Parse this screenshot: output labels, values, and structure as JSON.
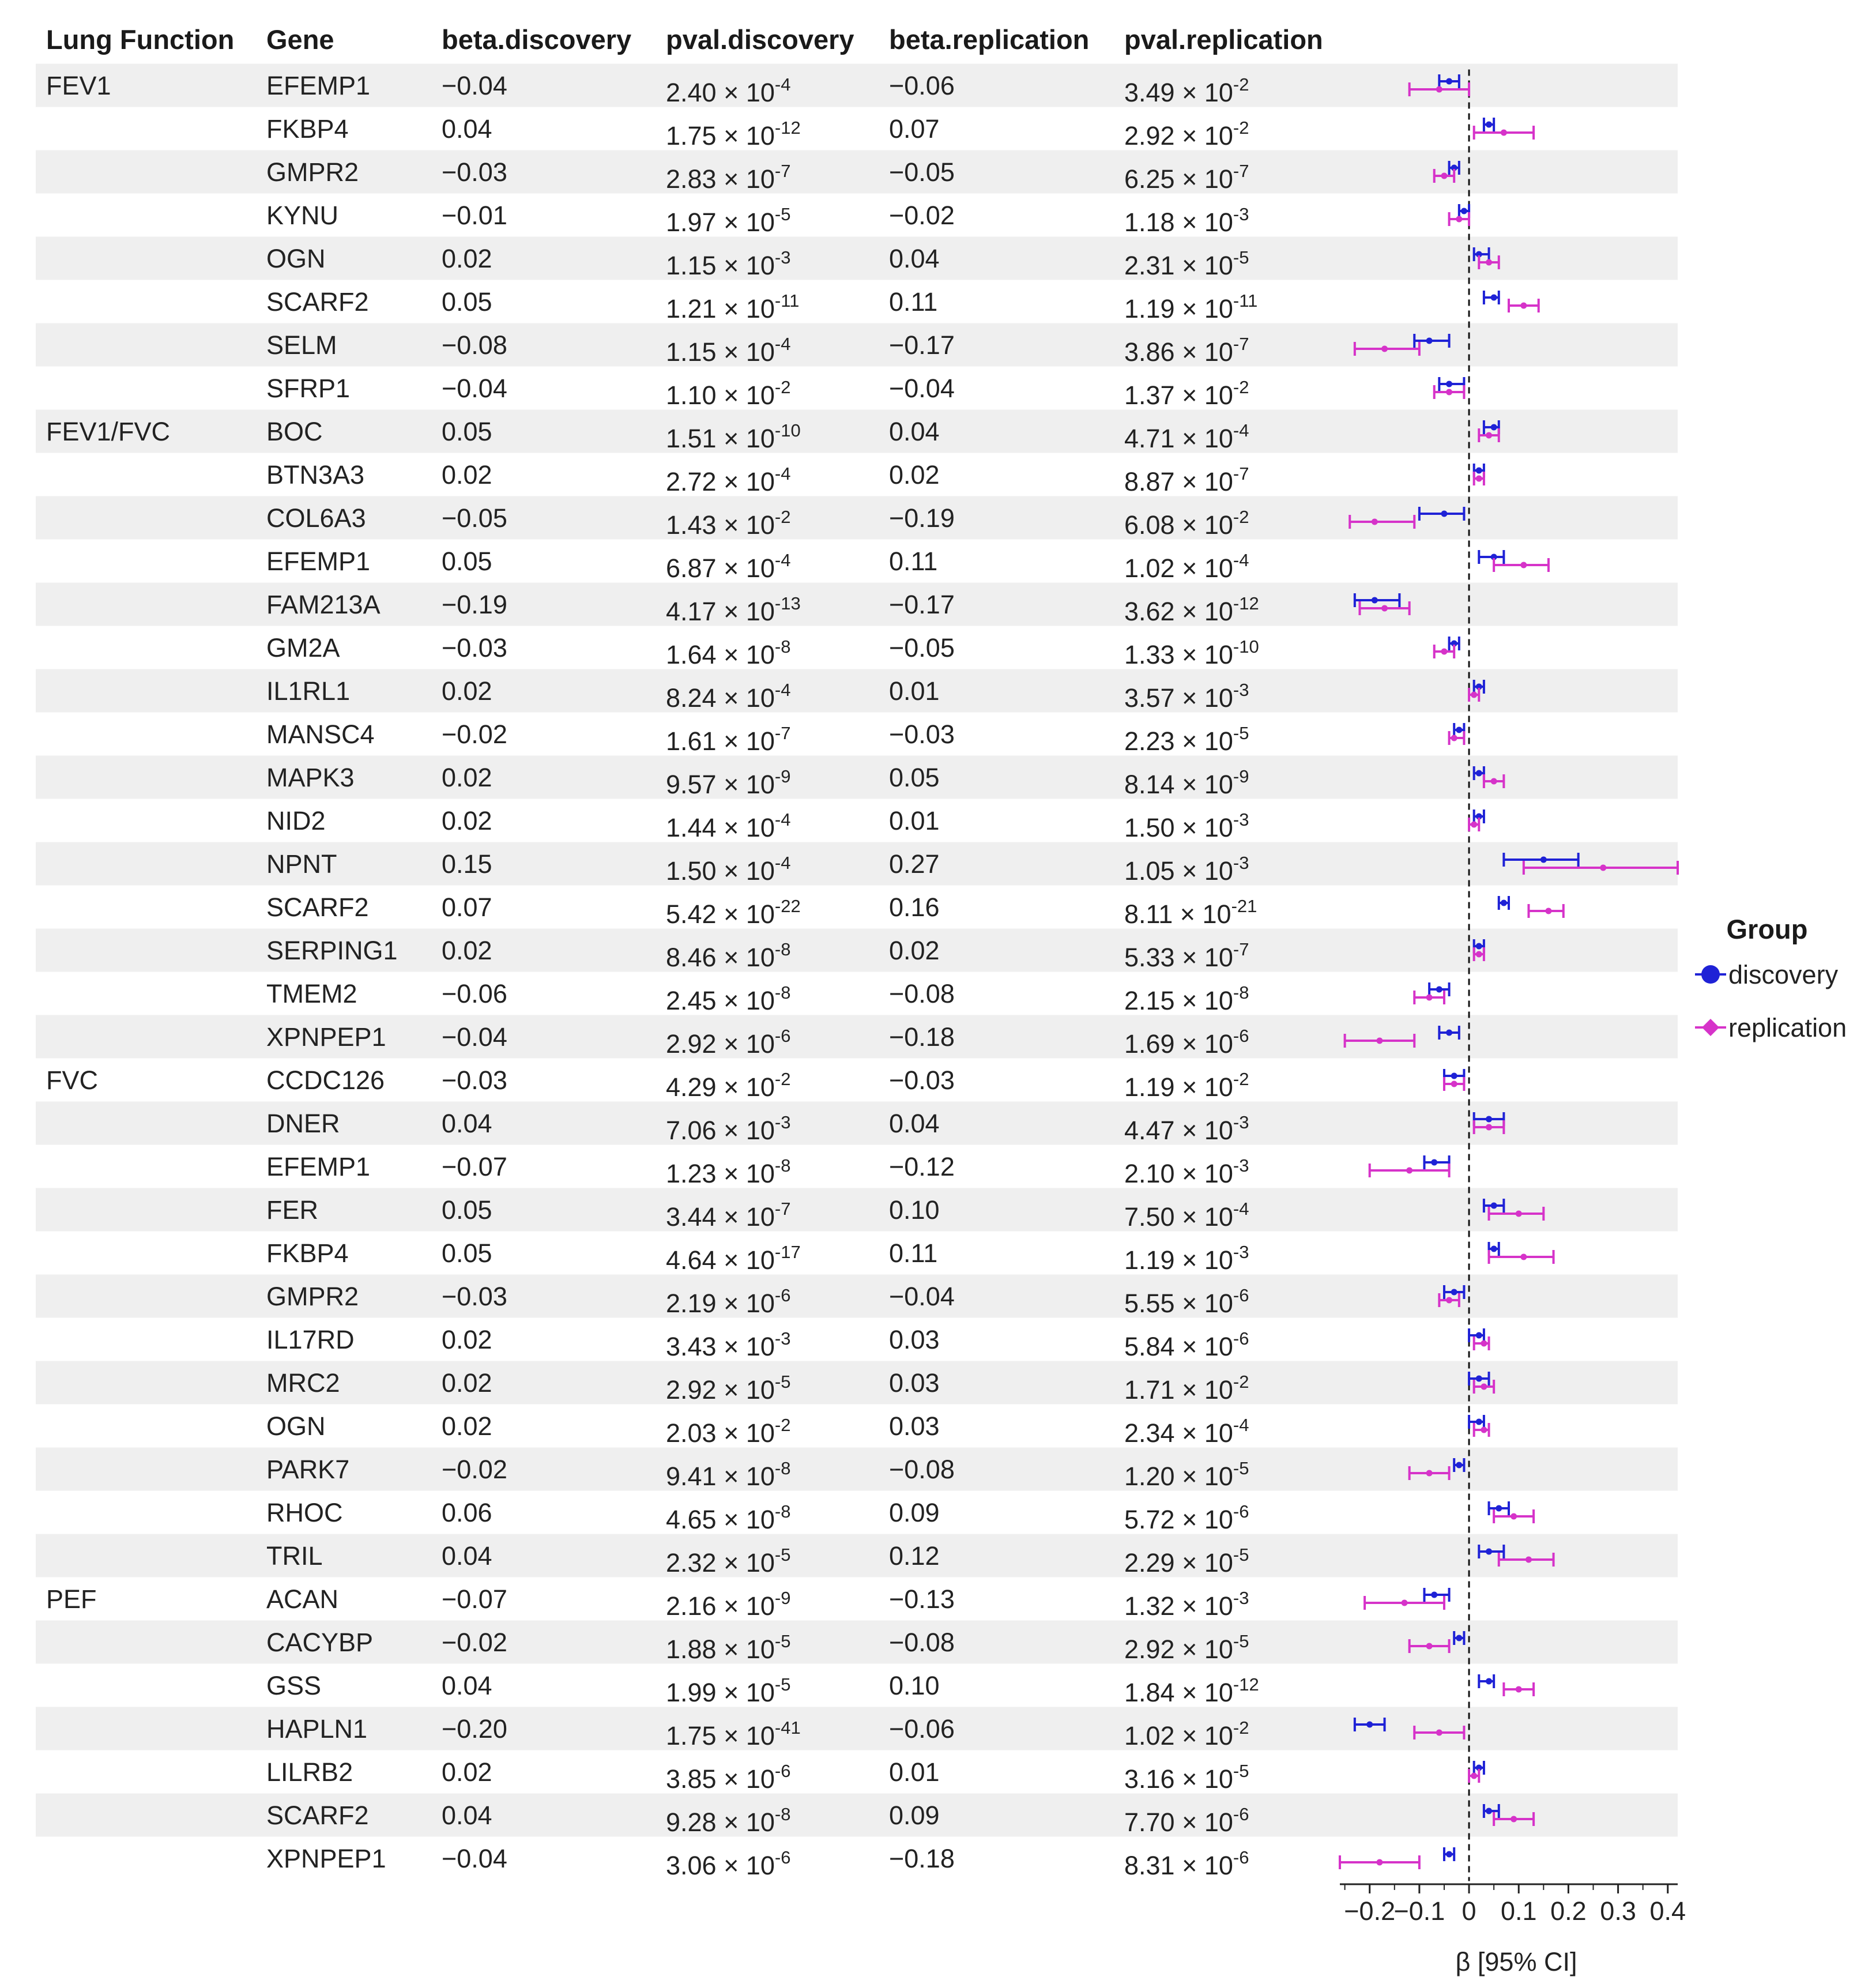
{
  "chart_data": {
    "type": "forest",
    "columns": [
      "Lung Function",
      "Gene",
      "beta.discovery",
      "pval.discovery",
      "beta.replication",
      "pval.replication"
    ],
    "rows": [
      {
        "group": "FEV1",
        "gene": "EFEMP1",
        "beta_d_label": "−0.04",
        "p_d_mant": "2.40",
        "p_d_exp": "-4",
        "beta_r_label": "−0.06",
        "p_r_mant": "3.49",
        "p_r_exp": "-2",
        "d": {
          "est": -0.04,
          "lo": -0.06,
          "hi": -0.02
        },
        "r": {
          "est": -0.06,
          "lo": -0.12,
          "hi": 0.0
        }
      },
      {
        "group": "",
        "gene": "FKBP4",
        "beta_d_label": "0.04",
        "p_d_mant": "1.75",
        "p_d_exp": "-12",
        "beta_r_label": "0.07",
        "p_r_mant": "2.92",
        "p_r_exp": "-2",
        "d": {
          "est": 0.04,
          "lo": 0.03,
          "hi": 0.05
        },
        "r": {
          "est": 0.07,
          "lo": 0.01,
          "hi": 0.13
        }
      },
      {
        "group": "",
        "gene": "GMPR2",
        "beta_d_label": "−0.03",
        "p_d_mant": "2.83",
        "p_d_exp": "-7",
        "beta_r_label": "−0.05",
        "p_r_mant": "6.25",
        "p_r_exp": "-7",
        "d": {
          "est": -0.03,
          "lo": -0.04,
          "hi": -0.02
        },
        "r": {
          "est": -0.05,
          "lo": -0.07,
          "hi": -0.03
        }
      },
      {
        "group": "",
        "gene": "KYNU",
        "beta_d_label": "−0.01",
        "p_d_mant": "1.97",
        "p_d_exp": "-5",
        "beta_r_label": "−0.02",
        "p_r_mant": "1.18",
        "p_r_exp": "-3",
        "d": {
          "est": -0.01,
          "lo": -0.02,
          "hi": 0.0
        },
        "r": {
          "est": -0.02,
          "lo": -0.04,
          "hi": 0.0
        }
      },
      {
        "group": "",
        "gene": "OGN",
        "beta_d_label": "0.02",
        "p_d_mant": "1.15",
        "p_d_exp": "-3",
        "beta_r_label": "0.04",
        "p_r_mant": "2.31",
        "p_r_exp": "-5",
        "d": {
          "est": 0.02,
          "lo": 0.01,
          "hi": 0.04
        },
        "r": {
          "est": 0.04,
          "lo": 0.02,
          "hi": 0.06
        }
      },
      {
        "group": "",
        "gene": "SCARF2",
        "beta_d_label": "0.05",
        "p_d_mant": "1.21",
        "p_d_exp": "-11",
        "beta_r_label": "0.11",
        "p_r_mant": "1.19",
        "p_r_exp": "-11",
        "d": {
          "est": 0.05,
          "lo": 0.03,
          "hi": 0.06
        },
        "r": {
          "est": 0.11,
          "lo": 0.08,
          "hi": 0.14
        }
      },
      {
        "group": "",
        "gene": "SELM",
        "beta_d_label": "−0.08",
        "p_d_mant": "1.15",
        "p_d_exp": "-4",
        "beta_r_label": "−0.17",
        "p_r_mant": "3.86",
        "p_r_exp": "-7",
        "d": {
          "est": -0.08,
          "lo": -0.11,
          "hi": -0.04
        },
        "r": {
          "est": -0.17,
          "lo": -0.23,
          "hi": -0.1
        }
      },
      {
        "group": "",
        "gene": "SFRP1",
        "beta_d_label": "−0.04",
        "p_d_mant": "1.10",
        "p_d_exp": "-2",
        "beta_r_label": "−0.04",
        "p_r_mant": "1.37",
        "p_r_exp": "-2",
        "d": {
          "est": -0.04,
          "lo": -0.06,
          "hi": -0.01
        },
        "r": {
          "est": -0.04,
          "lo": -0.07,
          "hi": -0.01
        }
      },
      {
        "group": "FEV1/FVC",
        "gene": "BOC",
        "beta_d_label": "0.05",
        "p_d_mant": "1.51",
        "p_d_exp": "-10",
        "beta_r_label": "0.04",
        "p_r_mant": "4.71",
        "p_r_exp": "-4",
        "d": {
          "est": 0.05,
          "lo": 0.03,
          "hi": 0.06
        },
        "r": {
          "est": 0.04,
          "lo": 0.02,
          "hi": 0.06
        }
      },
      {
        "group": "",
        "gene": "BTN3A3",
        "beta_d_label": "0.02",
        "p_d_mant": "2.72",
        "p_d_exp": "-4",
        "beta_r_label": "0.02",
        "p_r_mant": "8.87",
        "p_r_exp": "-7",
        "d": {
          "est": 0.02,
          "lo": 0.01,
          "hi": 0.03
        },
        "r": {
          "est": 0.02,
          "lo": 0.01,
          "hi": 0.03
        }
      },
      {
        "group": "",
        "gene": "COL6A3",
        "beta_d_label": "−0.05",
        "p_d_mant": "1.43",
        "p_d_exp": "-2",
        "beta_r_label": "−0.19",
        "p_r_mant": "6.08",
        "p_r_exp": "-2",
        "d": {
          "est": -0.05,
          "lo": -0.1,
          "hi": -0.01
        },
        "r": {
          "est": -0.19,
          "lo": -0.24,
          "hi": -0.11
        }
      },
      {
        "group": "",
        "gene": "EFEMP1",
        "beta_d_label": "0.05",
        "p_d_mant": "6.87",
        "p_d_exp": "-4",
        "beta_r_label": "0.11",
        "p_r_mant": "1.02",
        "p_r_exp": "-4",
        "d": {
          "est": 0.05,
          "lo": 0.02,
          "hi": 0.07
        },
        "r": {
          "est": 0.11,
          "lo": 0.05,
          "hi": 0.16
        }
      },
      {
        "group": "",
        "gene": "FAM213A",
        "beta_d_label": "−0.19",
        "p_d_mant": "4.17",
        "p_d_exp": "-13",
        "beta_r_label": "−0.17",
        "p_r_mant": "3.62",
        "p_r_exp": "-12",
        "d": {
          "est": -0.19,
          "lo": -0.23,
          "hi": -0.14
        },
        "r": {
          "est": -0.17,
          "lo": -0.22,
          "hi": -0.12
        }
      },
      {
        "group": "",
        "gene": "GM2A",
        "beta_d_label": "−0.03",
        "p_d_mant": "1.64",
        "p_d_exp": "-8",
        "beta_r_label": "−0.05",
        "p_r_mant": "1.33",
        "p_r_exp": "-10",
        "d": {
          "est": -0.03,
          "lo": -0.04,
          "hi": -0.02
        },
        "r": {
          "est": -0.05,
          "lo": -0.07,
          "hi": -0.03
        }
      },
      {
        "group": "",
        "gene": "IL1RL1",
        "beta_d_label": "0.02",
        "p_d_mant": "8.24",
        "p_d_exp": "-4",
        "beta_r_label": "0.01",
        "p_r_mant": "3.57",
        "p_r_exp": "-3",
        "d": {
          "est": 0.02,
          "lo": 0.01,
          "hi": 0.03
        },
        "r": {
          "est": 0.01,
          "lo": 0.0,
          "hi": 0.02
        }
      },
      {
        "group": "",
        "gene": "MANSC4",
        "beta_d_label": "−0.02",
        "p_d_mant": "1.61",
        "p_d_exp": "-7",
        "beta_r_label": "−0.03",
        "p_r_mant": "2.23",
        "p_r_exp": "-5",
        "d": {
          "est": -0.02,
          "lo": -0.03,
          "hi": -0.01
        },
        "r": {
          "est": -0.03,
          "lo": -0.04,
          "hi": -0.01
        }
      },
      {
        "group": "",
        "gene": "MAPK3",
        "beta_d_label": "0.02",
        "p_d_mant": "9.57",
        "p_d_exp": "-9",
        "beta_r_label": "0.05",
        "p_r_mant": "8.14",
        "p_r_exp": "-9",
        "d": {
          "est": 0.02,
          "lo": 0.01,
          "hi": 0.03
        },
        "r": {
          "est": 0.05,
          "lo": 0.03,
          "hi": 0.07
        }
      },
      {
        "group": "",
        "gene": "NID2",
        "beta_d_label": "0.02",
        "p_d_mant": "1.44",
        "p_d_exp": "-4",
        "beta_r_label": "0.01",
        "p_r_mant": "1.50",
        "p_r_exp": "-3",
        "d": {
          "est": 0.02,
          "lo": 0.01,
          "hi": 0.03
        },
        "r": {
          "est": 0.01,
          "lo": 0.0,
          "hi": 0.02
        }
      },
      {
        "group": "",
        "gene": "NPNT",
        "beta_d_label": "0.15",
        "p_d_mant": "1.50",
        "p_d_exp": "-4",
        "beta_r_label": "0.27",
        "p_r_mant": "1.05",
        "p_r_exp": "-3",
        "d": {
          "est": 0.15,
          "lo": 0.07,
          "hi": 0.22
        },
        "r": {
          "est": 0.27,
          "lo": 0.11,
          "hi": 0.42
        }
      },
      {
        "group": "",
        "gene": "SCARF2",
        "beta_d_label": "0.07",
        "p_d_mant": "5.42",
        "p_d_exp": "-22",
        "beta_r_label": "0.16",
        "p_r_mant": "8.11",
        "p_r_exp": "-21",
        "d": {
          "est": 0.07,
          "lo": 0.06,
          "hi": 0.08
        },
        "r": {
          "est": 0.16,
          "lo": 0.12,
          "hi": 0.19
        }
      },
      {
        "group": "",
        "gene": "SERPING1",
        "beta_d_label": "0.02",
        "p_d_mant": "8.46",
        "p_d_exp": "-8",
        "beta_r_label": "0.02",
        "p_r_mant": "5.33",
        "p_r_exp": "-7",
        "d": {
          "est": 0.02,
          "lo": 0.01,
          "hi": 0.03
        },
        "r": {
          "est": 0.02,
          "lo": 0.01,
          "hi": 0.03
        }
      },
      {
        "group": "",
        "gene": "TMEM2",
        "beta_d_label": "−0.06",
        "p_d_mant": "2.45",
        "p_d_exp": "-8",
        "beta_r_label": "−0.08",
        "p_r_mant": "2.15",
        "p_r_exp": "-8",
        "d": {
          "est": -0.06,
          "lo": -0.08,
          "hi": -0.04
        },
        "r": {
          "est": -0.08,
          "lo": -0.11,
          "hi": -0.05
        }
      },
      {
        "group": "",
        "gene": "XPNPEP1",
        "beta_d_label": "−0.04",
        "p_d_mant": "2.92",
        "p_d_exp": "-6",
        "beta_r_label": "−0.18",
        "p_r_mant": "1.69",
        "p_r_exp": "-6",
        "d": {
          "est": -0.04,
          "lo": -0.06,
          "hi": -0.02
        },
        "r": {
          "est": -0.18,
          "lo": -0.25,
          "hi": -0.11
        }
      },
      {
        "group": "FVC",
        "gene": "CCDC126",
        "beta_d_label": "−0.03",
        "p_d_mant": "4.29",
        "p_d_exp": "-2",
        "beta_r_label": "−0.03",
        "p_r_mant": "1.19",
        "p_r_exp": "-2",
        "d": {
          "est": -0.03,
          "lo": -0.05,
          "hi": -0.01
        },
        "r": {
          "est": -0.03,
          "lo": -0.05,
          "hi": -0.01
        }
      },
      {
        "group": "",
        "gene": "DNER",
        "beta_d_label": "0.04",
        "p_d_mant": "7.06",
        "p_d_exp": "-3",
        "beta_r_label": "0.04",
        "p_r_mant": "4.47",
        "p_r_exp": "-3",
        "d": {
          "est": 0.04,
          "lo": 0.01,
          "hi": 0.07
        },
        "r": {
          "est": 0.04,
          "lo": 0.01,
          "hi": 0.07
        }
      },
      {
        "group": "",
        "gene": "EFEMP1",
        "beta_d_label": "−0.07",
        "p_d_mant": "1.23",
        "p_d_exp": "-8",
        "beta_r_label": "−0.12",
        "p_r_mant": "2.10",
        "p_r_exp": "-3",
        "d": {
          "est": -0.07,
          "lo": -0.09,
          "hi": -0.04
        },
        "r": {
          "est": -0.12,
          "lo": -0.2,
          "hi": -0.04
        }
      },
      {
        "group": "",
        "gene": "FER",
        "beta_d_label": "0.05",
        "p_d_mant": "3.44",
        "p_d_exp": "-7",
        "beta_r_label": "0.10",
        "p_r_mant": "7.50",
        "p_r_exp": "-4",
        "d": {
          "est": 0.05,
          "lo": 0.03,
          "hi": 0.07
        },
        "r": {
          "est": 0.1,
          "lo": 0.04,
          "hi": 0.15
        }
      },
      {
        "group": "",
        "gene": "FKBP4",
        "beta_d_label": "0.05",
        "p_d_mant": "4.64",
        "p_d_exp": "-17",
        "beta_r_label": "0.11",
        "p_r_mant": "1.19",
        "p_r_exp": "-3",
        "d": {
          "est": 0.05,
          "lo": 0.04,
          "hi": 0.06
        },
        "r": {
          "est": 0.11,
          "lo": 0.04,
          "hi": 0.17
        }
      },
      {
        "group": "",
        "gene": "GMPR2",
        "beta_d_label": "−0.03",
        "p_d_mant": "2.19",
        "p_d_exp": "-6",
        "beta_r_label": "−0.04",
        "p_r_mant": "5.55",
        "p_r_exp": "-6",
        "d": {
          "est": -0.03,
          "lo": -0.05,
          "hi": -0.01
        },
        "r": {
          "est": -0.04,
          "lo": -0.06,
          "hi": -0.02
        }
      },
      {
        "group": "",
        "gene": "IL17RD",
        "beta_d_label": "0.02",
        "p_d_mant": "3.43",
        "p_d_exp": "-3",
        "beta_r_label": "0.03",
        "p_r_mant": "5.84",
        "p_r_exp": "-6",
        "d": {
          "est": 0.02,
          "lo": 0.0,
          "hi": 0.03
        },
        "r": {
          "est": 0.03,
          "lo": 0.01,
          "hi": 0.04
        }
      },
      {
        "group": "",
        "gene": "MRC2",
        "beta_d_label": "0.02",
        "p_d_mant": "2.92",
        "p_d_exp": "-5",
        "beta_r_label": "0.03",
        "p_r_mant": "1.71",
        "p_r_exp": "-2",
        "d": {
          "est": 0.02,
          "lo": 0.0,
          "hi": 0.04
        },
        "r": {
          "est": 0.03,
          "lo": 0.01,
          "hi": 0.05
        }
      },
      {
        "group": "",
        "gene": "OGN",
        "beta_d_label": "0.02",
        "p_d_mant": "2.03",
        "p_d_exp": "-2",
        "beta_r_label": "0.03",
        "p_r_mant": "2.34",
        "p_r_exp": "-4",
        "d": {
          "est": 0.02,
          "lo": 0.0,
          "hi": 0.03
        },
        "r": {
          "est": 0.03,
          "lo": 0.01,
          "hi": 0.04
        }
      },
      {
        "group": "",
        "gene": "PARK7",
        "beta_d_label": "−0.02",
        "p_d_mant": "9.41",
        "p_d_exp": "-8",
        "beta_r_label": "−0.08",
        "p_r_mant": "1.20",
        "p_r_exp": "-5",
        "d": {
          "est": -0.02,
          "lo": -0.03,
          "hi": -0.01
        },
        "r": {
          "est": -0.08,
          "lo": -0.12,
          "hi": -0.04
        }
      },
      {
        "group": "",
        "gene": "RHOC",
        "beta_d_label": "0.06",
        "p_d_mant": "4.65",
        "p_d_exp": "-8",
        "beta_r_label": "0.09",
        "p_r_mant": "5.72",
        "p_r_exp": "-6",
        "d": {
          "est": 0.06,
          "lo": 0.04,
          "hi": 0.08
        },
        "r": {
          "est": 0.09,
          "lo": 0.05,
          "hi": 0.13
        }
      },
      {
        "group": "",
        "gene": "TRIL",
        "beta_d_label": "0.04",
        "p_d_mant": "2.32",
        "p_d_exp": "-5",
        "beta_r_label": "0.12",
        "p_r_mant": "2.29",
        "p_r_exp": "-5",
        "d": {
          "est": 0.04,
          "lo": 0.02,
          "hi": 0.07
        },
        "r": {
          "est": 0.12,
          "lo": 0.06,
          "hi": 0.17
        }
      },
      {
        "group": "PEF",
        "gene": "ACAN",
        "beta_d_label": "−0.07",
        "p_d_mant": "2.16",
        "p_d_exp": "-9",
        "beta_r_label": "−0.13",
        "p_r_mant": "1.32",
        "p_r_exp": "-3",
        "d": {
          "est": -0.07,
          "lo": -0.09,
          "hi": -0.04
        },
        "r": {
          "est": -0.13,
          "lo": -0.21,
          "hi": -0.05
        }
      },
      {
        "group": "",
        "gene": "CACYBP",
        "beta_d_label": "−0.02",
        "p_d_mant": "1.88",
        "p_d_exp": "-5",
        "beta_r_label": "−0.08",
        "p_r_mant": "2.92",
        "p_r_exp": "-5",
        "d": {
          "est": -0.02,
          "lo": -0.03,
          "hi": -0.01
        },
        "r": {
          "est": -0.08,
          "lo": -0.12,
          "hi": -0.04
        }
      },
      {
        "group": "",
        "gene": "GSS",
        "beta_d_label": "0.04",
        "p_d_mant": "1.99",
        "p_d_exp": "-5",
        "beta_r_label": "0.10",
        "p_r_mant": "1.84",
        "p_r_exp": "-12",
        "d": {
          "est": 0.04,
          "lo": 0.02,
          "hi": 0.05
        },
        "r": {
          "est": 0.1,
          "lo": 0.07,
          "hi": 0.13
        }
      },
      {
        "group": "",
        "gene": "HAPLN1",
        "beta_d_label": "−0.20",
        "p_d_mant": "1.75",
        "p_d_exp": "-41",
        "beta_r_label": "−0.06",
        "p_r_mant": "1.02",
        "p_r_exp": "-2",
        "d": {
          "est": -0.2,
          "lo": -0.23,
          "hi": -0.17
        },
        "r": {
          "est": -0.06,
          "lo": -0.11,
          "hi": -0.01
        }
      },
      {
        "group": "",
        "gene": "LILRB2",
        "beta_d_label": "0.02",
        "p_d_mant": "3.85",
        "p_d_exp": "-6",
        "beta_r_label": "0.01",
        "p_r_mant": "3.16",
        "p_r_exp": "-5",
        "d": {
          "est": 0.02,
          "lo": 0.01,
          "hi": 0.03
        },
        "r": {
          "est": 0.01,
          "lo": 0.0,
          "hi": 0.02
        }
      },
      {
        "group": "",
        "gene": "SCARF2",
        "beta_d_label": "0.04",
        "p_d_mant": "9.28",
        "p_d_exp": "-8",
        "beta_r_label": "0.09",
        "p_r_mant": "7.70",
        "p_r_exp": "-6",
        "d": {
          "est": 0.04,
          "lo": 0.03,
          "hi": 0.06
        },
        "r": {
          "est": 0.09,
          "lo": 0.05,
          "hi": 0.13
        }
      },
      {
        "group": "",
        "gene": "XPNPEP1",
        "beta_d_label": "−0.04",
        "p_d_mant": "3.06",
        "p_d_exp": "-6",
        "beta_r_label": "−0.18",
        "p_r_mant": "8.31",
        "p_r_exp": "-6",
        "d": {
          "est": -0.04,
          "lo": -0.05,
          "hi": -0.03
        },
        "r": {
          "est": -0.18,
          "lo": -0.26,
          "hi": -0.1
        }
      }
    ],
    "x_axis": {
      "label": "β [95% CI]",
      "range": [
        -0.26,
        0.42
      ],
      "ticks": [
        -0.2,
        -0.1,
        0,
        0.1,
        0.2,
        0.3,
        0.4
      ],
      "tick_labels": [
        "−0.2",
        "−0.1",
        "0",
        "0.1",
        "0.2",
        "0.3",
        "0.4"
      ],
      "ref_line": 0
    },
    "legend": {
      "title": "Group",
      "placement": "right",
      "items": [
        {
          "name": "discovery",
          "color": "#1f22d6",
          "marker": "circle"
        },
        {
          "name": "replication",
          "color": "#d633c9",
          "marker": "diamond"
        }
      ]
    },
    "row_shading": "#efefef"
  }
}
